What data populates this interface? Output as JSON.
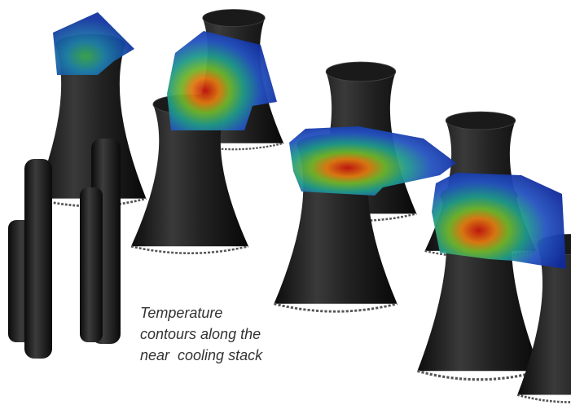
{
  "caption": {
    "lines": [
      "Temperature",
      "contours along the",
      "near  cooling stack"
    ]
  }
}
